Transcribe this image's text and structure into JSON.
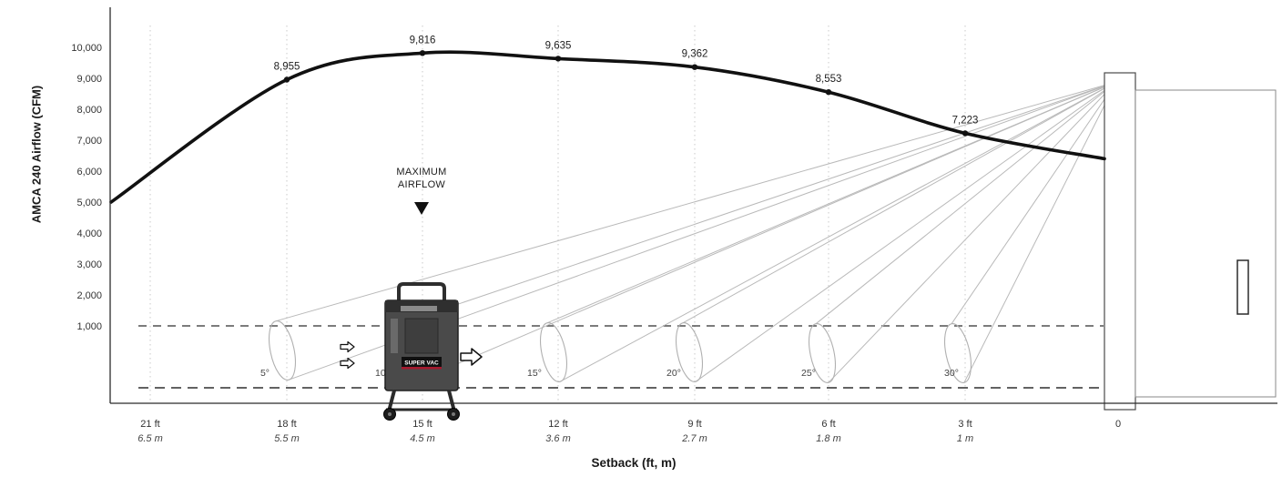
{
  "figure": {
    "ylabel": "AMCA 240 Airflow (CFM)",
    "xlabel": "Setback (ft, m)",
    "annotation": {
      "line1": "MAXIMUM",
      "line2": "AIRFLOW"
    },
    "machine_label": "SUPER VAC"
  },
  "icons": {
    "airflow_arrow": "⇨",
    "max_airflow_marker": "▼"
  },
  "chart_data": {
    "type": "line",
    "title": "",
    "ylabel": "AMCA 240 Airflow (CFM)",
    "xlabel": "Setback (ft, m)",
    "ylim": [
      0,
      10500
    ],
    "grid": "vertical-dotted",
    "legend": "none",
    "y_ticks": [
      1000,
      2000,
      3000,
      4000,
      5000,
      6000,
      7000,
      8000,
      9000,
      10000
    ],
    "categories": [
      {
        "ft": "21 ft",
        "m": "6.5 m"
      },
      {
        "ft": "18 ft",
        "m": "5.5 m"
      },
      {
        "ft": "15 ft",
        "m": "4.5 m"
      },
      {
        "ft": "12 ft",
        "m": "3.6 m"
      },
      {
        "ft": "9 ft",
        "m": "2.7 m"
      },
      {
        "ft": "6 ft",
        "m": "1.8 m"
      },
      {
        "ft": "3 ft",
        "m": "1 m"
      },
      {
        "ft": "0",
        "m": ""
      }
    ],
    "series": [
      {
        "name": "AMCA 240 Airflow",
        "labeled_points": [
          {
            "setback_ft": 18,
            "cfm": 8955
          },
          {
            "setback_ft": 15,
            "cfm": 9816
          },
          {
            "setback_ft": 12,
            "cfm": 9635
          },
          {
            "setback_ft": 9,
            "cfm": 9362
          },
          {
            "setback_ft": 6,
            "cfm": 8553
          },
          {
            "setback_ft": 3,
            "cfm": 7223
          }
        ],
        "curve_start_cfm_est": 5000,
        "curve_end_cfm_est": 6400
      }
    ],
    "annotations": [
      {
        "text": "MAXIMUM AIRFLOW",
        "marker": "down-triangle",
        "near_setback_ft": 15
      }
    ],
    "deflection_angles": [
      "5°",
      "10°",
      "15°",
      "20°",
      "25°",
      "30°"
    ]
  }
}
